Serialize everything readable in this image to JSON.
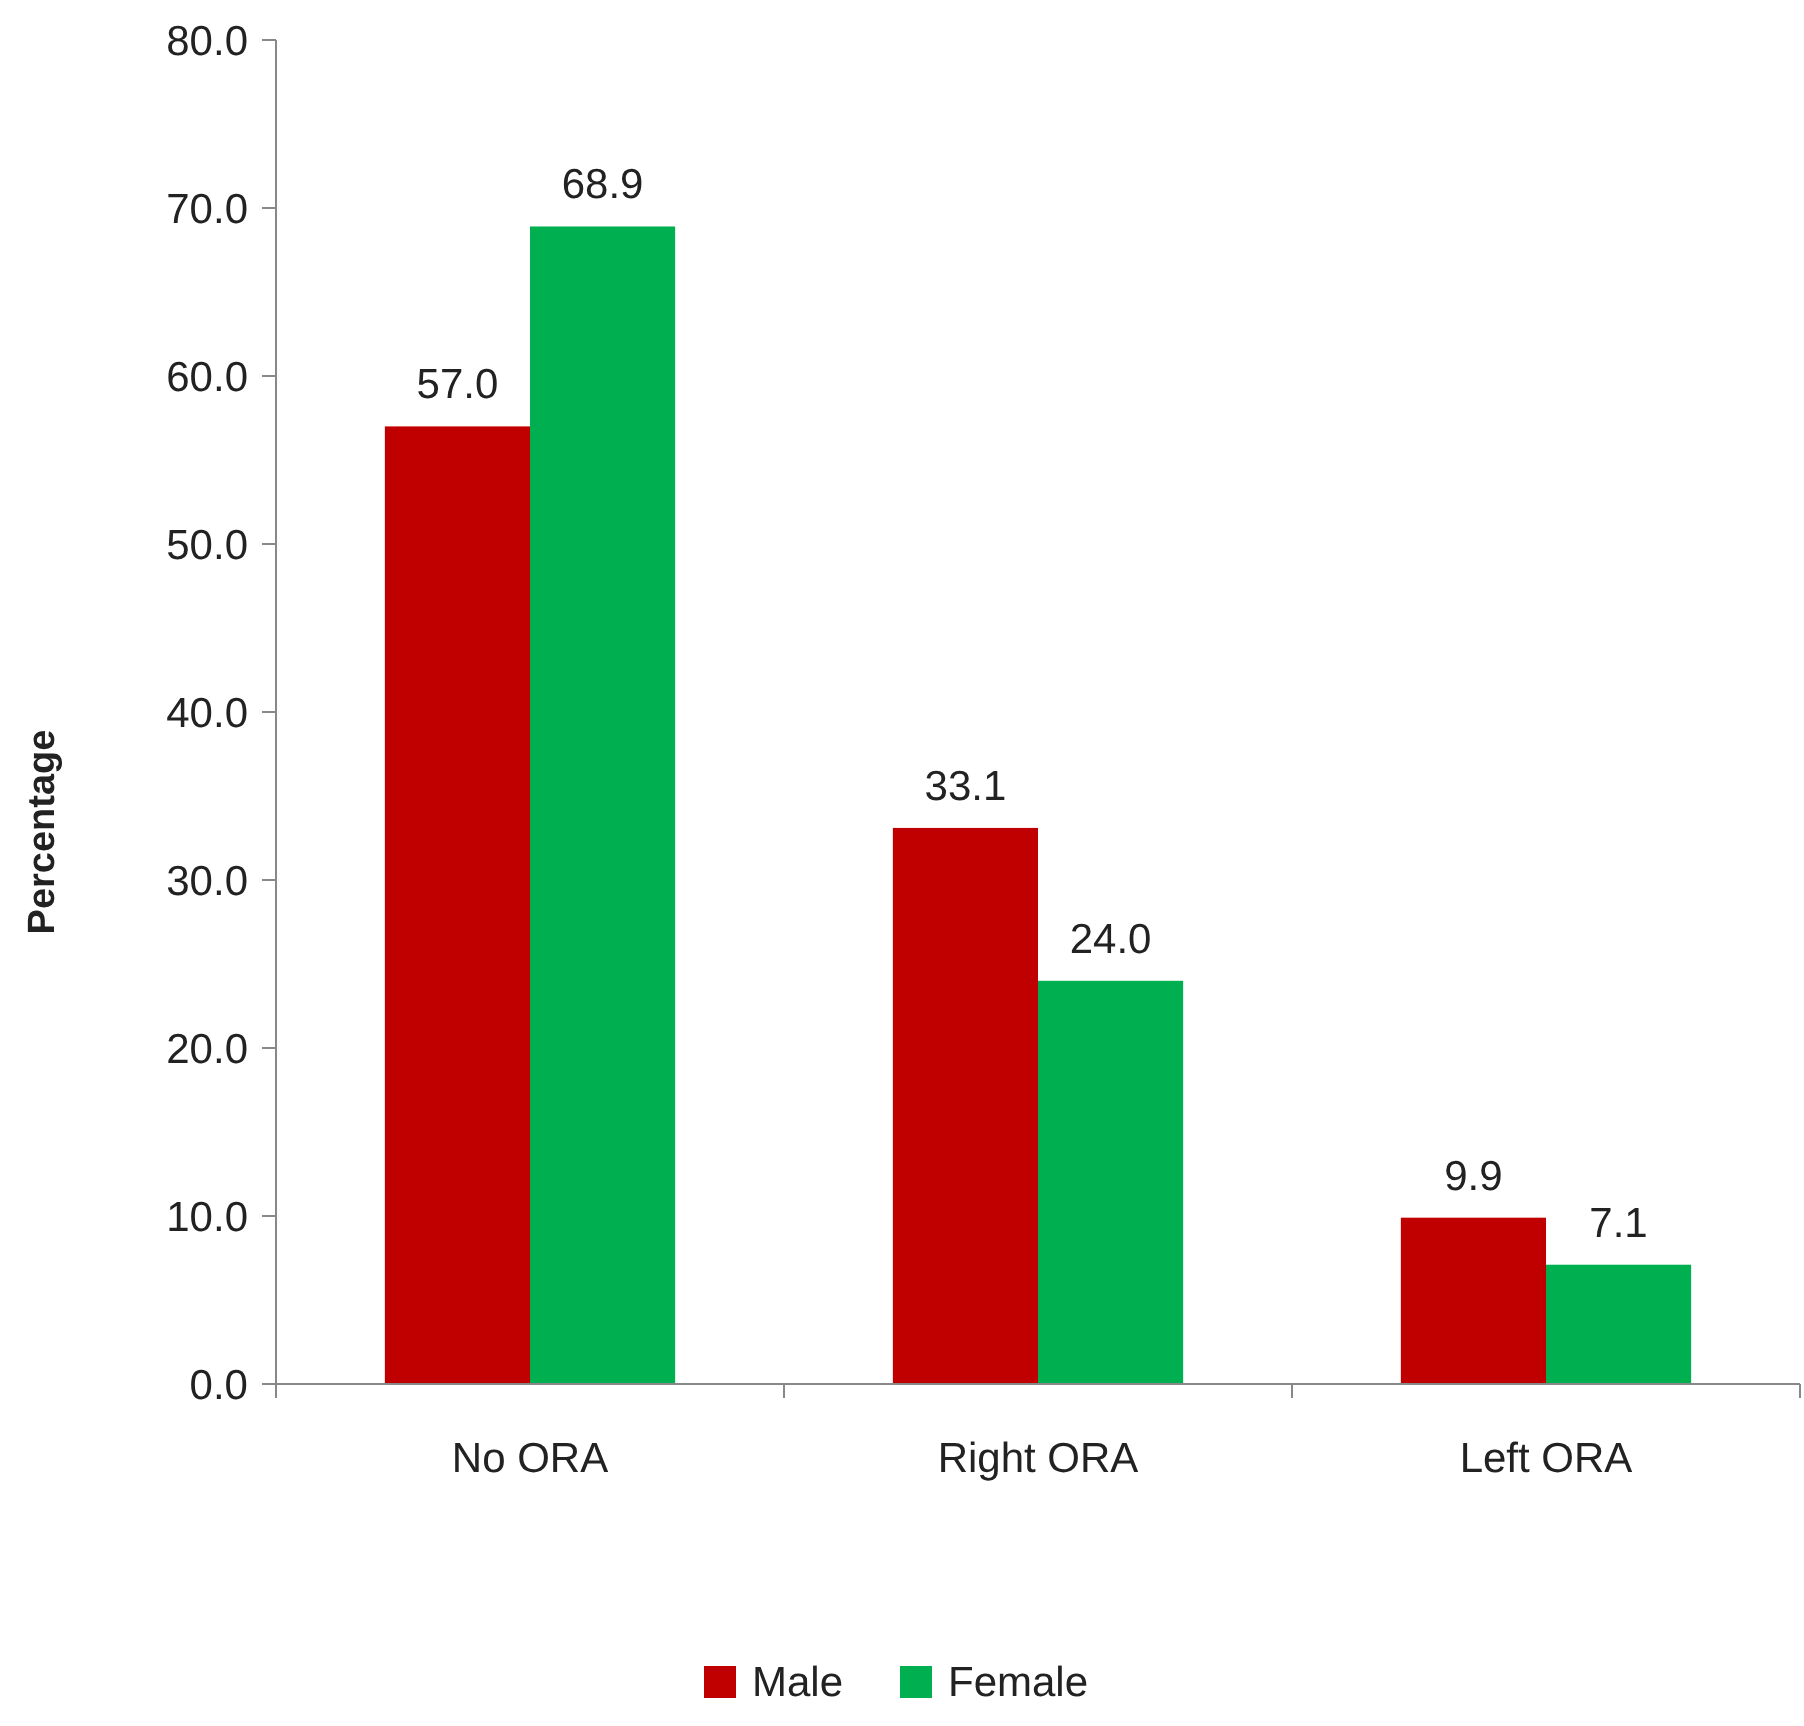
{
  "chart_data": {
    "type": "bar",
    "ylabel": "Percentage",
    "categories": [
      "No ORA",
      "Right ORA",
      "Left ORA"
    ],
    "series": [
      {
        "name": "Male",
        "color": "#c00000",
        "values": [
          57.0,
          33.1,
          9.9
        ],
        "value_labels": [
          "57.0",
          "33.1",
          "9.9"
        ]
      },
      {
        "name": "Female",
        "color": "#00b050",
        "values": [
          68.9,
          24.0,
          7.1
        ],
        "value_labels": [
          "68.9",
          "24.0",
          "7.1"
        ]
      }
    ],
    "ylim": [
      0,
      80
    ],
    "yticks": [
      {
        "value": 0,
        "label": "0.0"
      },
      {
        "value": 10,
        "label": "10.0"
      },
      {
        "value": 20,
        "label": "20.0"
      },
      {
        "value": 30,
        "label": "30.0"
      },
      {
        "value": 40,
        "label": "40.0"
      },
      {
        "value": 50,
        "label": "50.0"
      },
      {
        "value": 60,
        "label": "60.0"
      },
      {
        "value": 70,
        "label": "70.0"
      },
      {
        "value": 80,
        "label": "80.0"
      }
    ],
    "grid": false,
    "legend": "bottom"
  }
}
